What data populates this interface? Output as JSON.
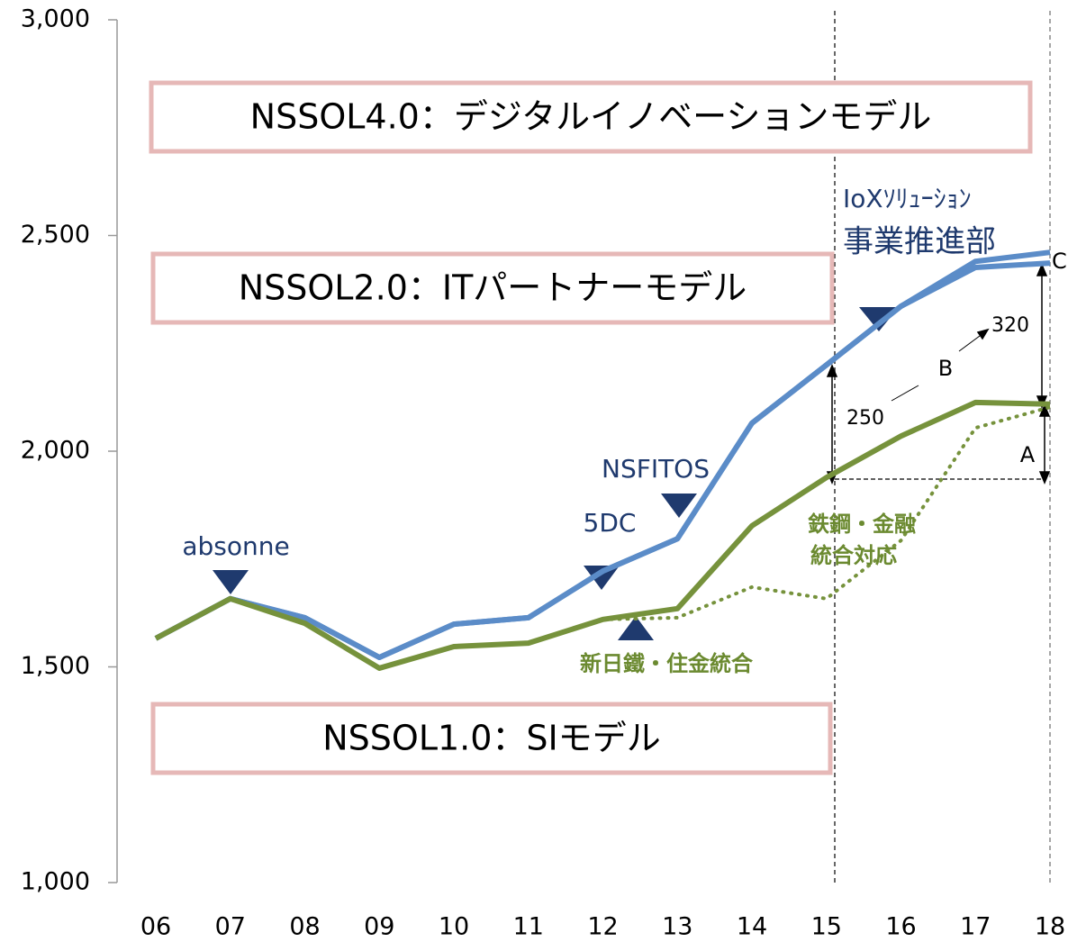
{
  "chart_data": {
    "type": "line",
    "categories": [
      "06",
      "07",
      "08",
      "09",
      "10",
      "11",
      "12",
      "13",
      "14",
      "15",
      "16",
      "17",
      "18"
    ],
    "ylim": [
      1000,
      3000
    ],
    "yticks": [
      {
        "value": 1000,
        "label": "1,000"
      },
      {
        "value": 1500,
        "label": "1,500"
      },
      {
        "value": 2000,
        "label": "2,000"
      },
      {
        "value": 2500,
        "label": "2,500"
      },
      {
        "value": 3000,
        "label": "3,000"
      }
    ],
    "series": [
      {
        "color": "#5b8cc8",
        "style": "solid",
        "values": [
          1566,
          1658,
          1614,
          1522,
          1599,
          1614,
          1722,
          1797,
          2065,
          2200,
          2336,
          2440,
          2461
        ]
      },
      {
        "color": "#5b8cc8",
        "style": "solid",
        "values": [
          1566,
          1658,
          1614,
          1522,
          1599,
          1614,
          1722,
          1797,
          2065,
          2200,
          2336,
          2426,
          2436
        ]
      },
      {
        "color": "#76923c",
        "style": "solid",
        "values": [
          1566,
          1658,
          1601,
          1497,
          1547,
          1555,
          1610,
          1635,
          1827,
          1939,
          2035,
          2113,
          2109
        ]
      },
      {
        "color": "#76923c",
        "style": "dotted",
        "values": [
          null,
          null,
          null,
          null,
          null,
          null,
          1610,
          1614,
          1685,
          1658,
          1793,
          2054,
          2102
        ]
      }
    ],
    "boxes": [
      "NSSOL4.0：デジタルイノベーションモデル",
      "NSSOL2.0：ITパートナーモデル",
      "NSSOL1.0：SIモデル"
    ],
    "annotations": [
      "IoXｿﾘｭｰｼｮﾝ",
      "事業推進部",
      "absonne",
      "5DC",
      "NSFITOS",
      "新日鐵・住金統合",
      "鉄鋼・金融",
      "統合対応",
      "250",
      "320",
      "A",
      "B",
      "C"
    ]
  }
}
